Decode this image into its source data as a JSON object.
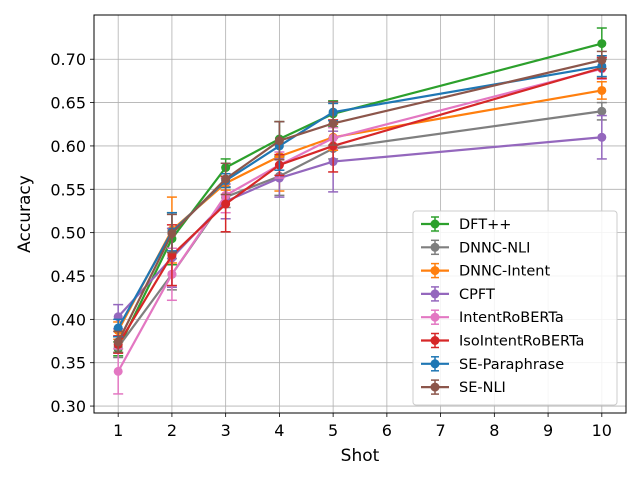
{
  "chart_data": {
    "type": "line",
    "title": "",
    "xlabel": "Shot",
    "ylabel": "Accuracy",
    "x": [
      1,
      2,
      3,
      4,
      5,
      10
    ],
    "xticks": [
      "1",
      "2",
      "3",
      "4",
      "5",
      "6",
      "7",
      "8",
      "9",
      "10"
    ],
    "yticks": [
      "0.30",
      "0.35",
      "0.40",
      "0.45",
      "0.50",
      "0.55",
      "0.60",
      "0.65",
      "0.70"
    ],
    "xlim": [
      0.55,
      10.45
    ],
    "ylim": [
      0.292,
      0.751
    ],
    "grid": true,
    "legend_position": "lower-right",
    "series": [
      {
        "name": "DFT++",
        "color": "#2ca02c",
        "values": [
          0.366,
          0.493,
          0.575,
          0.608,
          0.637,
          0.718
        ],
        "errors": [
          0.008,
          0.03,
          0.01,
          0.02,
          0.015,
          0.018
        ]
      },
      {
        "name": "DNNC-NLI",
        "color": "#7f7f7f",
        "values": [
          0.368,
          0.452,
          0.541,
          0.565,
          0.597,
          0.64
        ],
        "errors": [
          0.012,
          0.018,
          0.012,
          0.022,
          0.012,
          0.01
        ]
      },
      {
        "name": "DNNC-Intent",
        "color": "#ff7f0e",
        "values": [
          0.387,
          0.503,
          0.557,
          0.588,
          0.61,
          0.664
        ],
        "errors": [
          0.01,
          0.038,
          0.008,
          0.04,
          0.015,
          0.01
        ]
      },
      {
        "name": "CPFT",
        "color": "#9467bd",
        "values": [
          0.403,
          0.471,
          0.536,
          0.563,
          0.582,
          0.61
        ],
        "errors": [
          0.014,
          0.034,
          0.02,
          0.022,
          0.035,
          0.025
        ]
      },
      {
        "name": "IntentRoBERTa",
        "color": "#e377c2",
        "values": [
          0.34,
          0.452,
          0.543,
          0.578,
          0.609,
          0.689
        ],
        "errors": [
          0.026,
          0.03,
          0.02,
          0.015,
          0.012,
          0.012
        ]
      },
      {
        "name": "IsoIntentRoBERTa",
        "color": "#d62728",
        "values": [
          0.371,
          0.474,
          0.533,
          0.578,
          0.6,
          0.69
        ],
        "errors": [
          0.01,
          0.035,
          0.032,
          0.012,
          0.03,
          0.012
        ]
      },
      {
        "name": "SE-Paraphrase",
        "color": "#1f77b4",
        "values": [
          0.39,
          0.501,
          0.56,
          0.6,
          0.639,
          0.692
        ],
        "errors": [
          0.01,
          0.022,
          0.008,
          0.028,
          0.01,
          0.012
        ]
      },
      {
        "name": "SE-NLI",
        "color": "#8c564b",
        "values": [
          0.374,
          0.499,
          0.562,
          0.606,
          0.626,
          0.699
        ],
        "errors": [
          0.012,
          0.022,
          0.018,
          0.022,
          0.025,
          0.01
        ]
      }
    ]
  }
}
